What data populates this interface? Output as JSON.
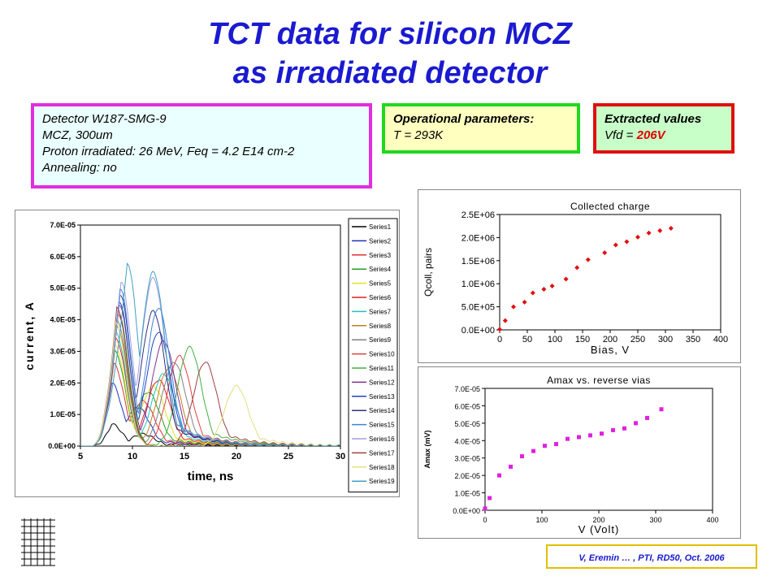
{
  "title": {
    "line1": "TCT data for silicon MCZ",
    "line2": "as irradiated detector"
  },
  "detector_box": {
    "line1": "Detector W187-SMG-9",
    "line2": "MCZ, 300um",
    "line3": "Proton irradiated: 26 MeV, Feq = 4.2 E14 cm-2",
    "line4": "Annealing:  no"
  },
  "operational_box": {
    "heading": "Operational parameters:",
    "line1": "T = 293K"
  },
  "extracted_box": {
    "heading": "Extracted values",
    "label": "Vfd = ",
    "value": "206V"
  },
  "credit": "V, Eremin … , PTI, RD50, Oct. 2006",
  "colors": {
    "title": "#1a1ad0",
    "box1_border": "#e02ee0",
    "box2_border": "#1fd81f",
    "box3_border": "#e01010",
    "marker_red": "#e01010",
    "marker_magenta": "#e020e0"
  },
  "chart_data": [
    {
      "type": "line",
      "title": "",
      "xlabel": "time, ns",
      "ylabel": "current, A",
      "xlim": [
        5,
        30
      ],
      "ylim": [
        0,
        7e-05
      ],
      "xticks": [
        "5",
        "10",
        "15",
        "20",
        "25",
        "30"
      ],
      "yticks": [
        "0.0E+00",
        "1.0E-05",
        "2.0E-05",
        "3.0E-05",
        "4.0E-05",
        "5.0E-05",
        "6.0E-05",
        "7.0E-05"
      ],
      "legend": "right",
      "series": [
        {
          "name": "Series1",
          "color": "#000000",
          "peak": 7e-06,
          "peak_t": 8.0,
          "second_peak": 4e-06,
          "second_t": 11.0
        },
        {
          "name": "Series2",
          "color": "#2030c0",
          "peak": 2e-05,
          "peak_t": 8.0,
          "second_peak": 1.3e-05,
          "second_t": 10.5
        },
        {
          "name": "Series3",
          "color": "#e03030",
          "peak": 2.6e-05,
          "peak_t": 8.2,
          "second_peak": 1.5e-05,
          "second_t": 11.0
        },
        {
          "name": "Series4",
          "color": "#20a020",
          "peak": 3e-05,
          "peak_t": 8.3,
          "second_peak": 1.8e-05,
          "second_t": 11.5
        },
        {
          "name": "Series5",
          "color": "#e0e020",
          "peak": 3.2e-05,
          "peak_t": 8.3,
          "second_peak": 2e-05,
          "second_t": 12.0
        },
        {
          "name": "Series6",
          "color": "#e02020",
          "peak": 3.4e-05,
          "peak_t": 8.4,
          "second_peak": 2.2e-05,
          "second_t": 12.5
        },
        {
          "name": "Series7",
          "color": "#20c0c0",
          "peak": 3.6e-05,
          "peak_t": 8.4,
          "second_peak": 2.4e-05,
          "second_t": 13.0
        },
        {
          "name": "Series8",
          "color": "#c08020",
          "peak": 3.8e-05,
          "peak_t": 8.5,
          "second_peak": 2.6e-05,
          "second_t": 13.5
        },
        {
          "name": "Series9",
          "color": "#808080",
          "peak": 4e-05,
          "peak_t": 8.5,
          "second_peak": 2.8e-05,
          "second_t": 14.0
        },
        {
          "name": "Series10",
          "color": "#e04040",
          "peak": 4.2e-05,
          "peak_t": 8.6,
          "second_peak": 3e-05,
          "second_t": 14.5
        },
        {
          "name": "Series11",
          "color": "#40b040",
          "peak": 4.3e-05,
          "peak_t": 8.6,
          "second_peak": 3.3e-05,
          "second_t": 15.5
        },
        {
          "name": "Series12",
          "color": "#803090",
          "peak": 4.5e-05,
          "peak_t": 8.7,
          "second_peak": 3.5e-05,
          "second_t": 13.0
        },
        {
          "name": "Series13",
          "color": "#2040c0",
          "peak": 4.6e-05,
          "peak_t": 8.7,
          "second_peak": 3.8e-05,
          "second_t": 12.5
        },
        {
          "name": "Series14",
          "color": "#303080",
          "peak": 4.8e-05,
          "peak_t": 8.8,
          "second_peak": 4.5e-05,
          "second_t": 12.0
        },
        {
          "name": "Series15",
          "color": "#4080e0",
          "peak": 5e-05,
          "peak_t": 8.8,
          "second_peak": 4.6e-05,
          "second_t": 12.5
        },
        {
          "name": "Series16",
          "color": "#a0a0e0",
          "peak": 5.2e-05,
          "peak_t": 8.9,
          "second_peak": 5.6e-05,
          "second_t": 12.0
        },
        {
          "name": "Series17",
          "color": "#a04040",
          "peak": 4.4e-05,
          "peak_t": 8.5,
          "second_peak": 2.8e-05,
          "second_t": 17.0
        },
        {
          "name": "Series18",
          "color": "#e0e080",
          "peak": 3.9e-05,
          "peak_t": 8.4,
          "second_peak": 2e-05,
          "second_t": 20.0
        },
        {
          "name": "Series19",
          "color": "#40a0c0",
          "peak": 5.8e-05,
          "peak_t": 9.5,
          "second_peak": 5.8e-05,
          "second_t": 12.0
        }
      ]
    },
    {
      "type": "scatter",
      "title": "Collected charge",
      "xlabel": "Bias, V",
      "ylabel": "Qcoll, pairs",
      "xlim": [
        0,
        400
      ],
      "ylim": [
        0,
        2500000
      ],
      "xticks": [
        "0",
        "50",
        "100",
        "150",
        "200",
        "250",
        "300",
        "350",
        "400"
      ],
      "yticks": [
        "0.0E+00",
        "5.0E+05",
        "1.0E+06",
        "1.5E+06",
        "2.0E+06",
        "2.5E+06"
      ],
      "x": [
        0,
        10,
        25,
        45,
        60,
        80,
        95,
        120,
        140,
        160,
        190,
        210,
        230,
        250,
        270,
        290,
        310
      ],
      "y": [
        10000,
        200000,
        500000,
        600000,
        800000,
        880000,
        950000,
        1100000,
        1350000,
        1520000,
        1670000,
        1840000,
        1910000,
        2010000,
        2100000,
        2150000,
        2200000
      ]
    },
    {
      "type": "scatter",
      "title": "Amax vs. reverse vias",
      "xlabel": "V (Volt)",
      "ylabel": "Amax (mV)",
      "xlim": [
        0,
        400
      ],
      "ylim": [
        0,
        7e-05
      ],
      "xticks": [
        "0",
        "100",
        "200",
        "300",
        "400"
      ],
      "yticks": [
        "0.0E+00",
        "1.0E-05",
        "2.0E-05",
        "3.0E-05",
        "4.0E-05",
        "5.0E-05",
        "6.0E-05",
        "7.0E-05"
      ],
      "x": [
        0,
        8,
        25,
        45,
        65,
        85,
        105,
        125,
        145,
        165,
        185,
        205,
        225,
        245,
        265,
        285,
        310
      ],
      "y": [
        1e-06,
        7e-06,
        2e-05,
        2.5e-05,
        3.1e-05,
        3.4e-05,
        3.7e-05,
        3.8e-05,
        4.1e-05,
        4.2e-05,
        4.3e-05,
        4.4e-05,
        4.6e-05,
        4.7e-05,
        5e-05,
        5.3e-05,
        5.8e-05
      ]
    }
  ]
}
